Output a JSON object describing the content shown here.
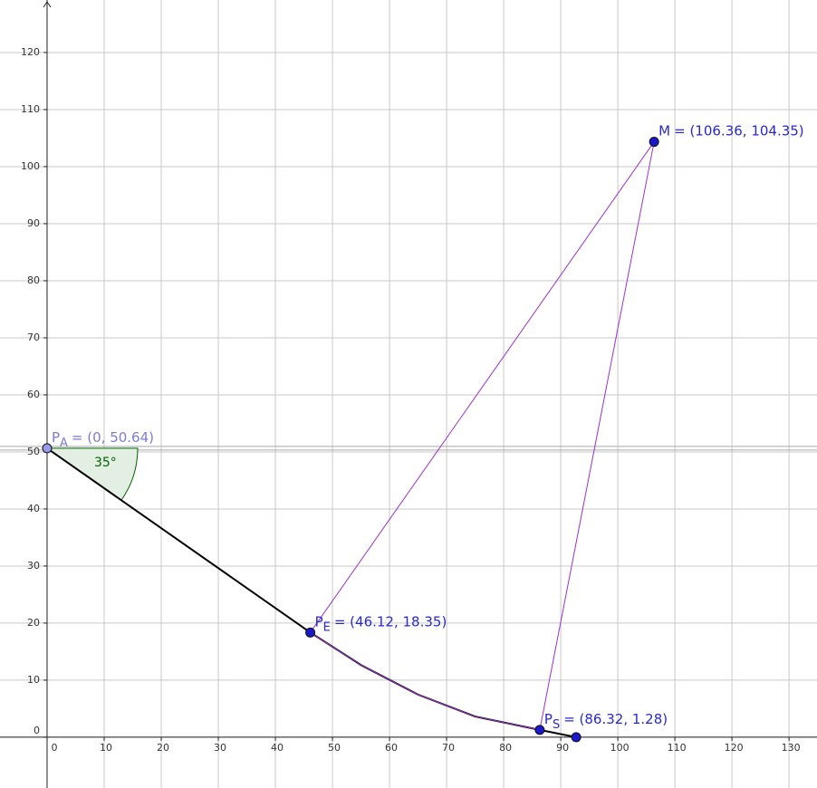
{
  "chart_data": {
    "type": "geometry",
    "xlim": [
      -8.25,
      134.9
    ],
    "ylim": [
      -8.9,
      129.2
    ],
    "xticks": [
      0,
      10,
      20,
      30,
      40,
      50,
      60,
      70,
      80,
      90,
      100,
      110,
      120,
      130
    ],
    "yticks": [
      0,
      10,
      20,
      30,
      40,
      50,
      60,
      70,
      80,
      90,
      100,
      110,
      120
    ],
    "grid": true,
    "angle": {
      "value": 35,
      "label": "35°",
      "color": "#006400",
      "fill": "#e2efe2"
    },
    "lines": [
      {
        "color": "#000000",
        "width": 2,
        "x": [
          0,
          46.12
        ],
        "y": [
          50.64,
          18.35
        ]
      },
      {
        "color": "#000000",
        "width": 2,
        "x": [
          46.12,
          55,
          65,
          75,
          86.32,
          92.7
        ],
        "y": [
          18.35,
          12.65,
          7.47,
          3.63,
          1.28,
          0
        ]
      },
      {
        "color": "#9933cc",
        "width": 1,
        "x": [
          46.12,
          55,
          65,
          75,
          86.32
        ],
        "y": [
          18.35,
          12.65,
          7.47,
          3.63,
          1.28
        ]
      },
      {
        "color": "#9933cc",
        "width": 1,
        "x": [
          46.12,
          106.36,
          86.32
        ],
        "y": [
          18.35,
          104.35,
          1.28
        ]
      }
    ],
    "points": [
      {
        "name": "P",
        "sub": "A",
        "coords": "= (0, 50.64)",
        "x": 0,
        "y": 50.64,
        "color": "#9999ee",
        "label_color": "#7b7bdb"
      },
      {
        "name": "P",
        "sub": "E",
        "coords": "= (46.12, 18.35)",
        "x": 46.12,
        "y": 18.35,
        "color": "#1a1acc",
        "label_color": "#2929cc"
      },
      {
        "name": "P",
        "sub": "S",
        "coords": "= (86.32, 1.28)",
        "x": 86.32,
        "y": 1.28,
        "color": "#1a1acc",
        "label_color": "#2929cc"
      },
      {
        "name": "M",
        "coords": "= (106.36, 104.35)",
        "x": 106.36,
        "y": 104.35,
        "color": "#1a1acc",
        "label_color": "#2929cc"
      },
      {
        "x": 92.7,
        "y": 0,
        "color": "#1a1acc"
      }
    ]
  }
}
